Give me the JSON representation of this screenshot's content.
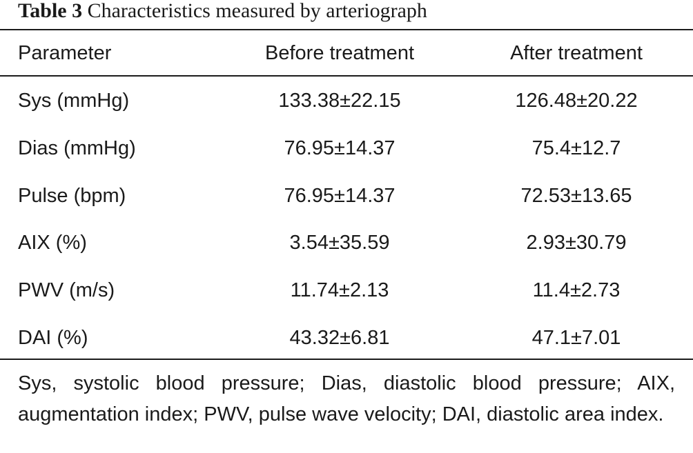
{
  "caption": {
    "label": "Table 3",
    "title": "Characteristics measured by arteriograph"
  },
  "table": {
    "headers": [
      "Parameter",
      "Before treatment",
      "After treatment"
    ],
    "rows": [
      [
        "Sys (mmHg)",
        "133.38±22.15",
        "126.48±20.22"
      ],
      [
        "Dias (mmHg)",
        "76.95±14.37",
        "75.4±12.7"
      ],
      [
        "Pulse (bpm)",
        "76.95±14.37",
        "72.53±13.65"
      ],
      [
        "AIX (%)",
        "3.54±35.59",
        "2.93±30.79"
      ],
      [
        "PWV (m/s)",
        "11.74±2.13",
        "11.4±2.73"
      ],
      [
        "DAI (%)",
        "43.32±6.81",
        "47.1±7.01"
      ]
    ]
  },
  "footnote": "Sys, systolic blood pressure; Dias, diastolic blood pressure; AIX, augmentation index; PWV, pulse wave velocity; DAI, diastolic area index."
}
